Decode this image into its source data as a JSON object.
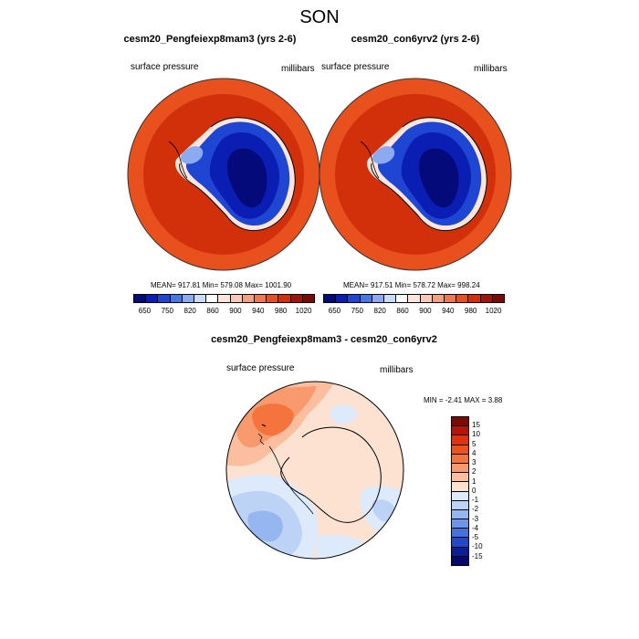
{
  "page": {
    "title": "SON"
  },
  "panels": [
    {
      "case": "cesm20_Pengfeiexp8mam3 (yrs 2-6)",
      "variable": "surface pressure",
      "units": "millibars",
      "stats": "MEAN= 917.81  Min= 579.08  Max= 1001.90"
    },
    {
      "case": "cesm20_con6yrv2 (yrs 2-6)",
      "variable": "surface pressure",
      "units": "millibars",
      "stats": "MEAN= 917.51  Min= 578.72  Max= 998.24"
    }
  ],
  "top_colorbar": {
    "labels": [
      "650",
      "750",
      "820",
      "860",
      "900",
      "940",
      "980",
      "1020"
    ],
    "colors": [
      "#050a7a",
      "#0a1eb4",
      "#1e46d2",
      "#4678e6",
      "#8caaf0",
      "#c8dcf8",
      "#ffffff",
      "#fce6dc",
      "#fac8b4",
      "#f5a082",
      "#f07850",
      "#e8501e",
      "#d2300a",
      "#a0140a",
      "#7a0a05"
    ]
  },
  "diff_panel": {
    "title": "cesm20_Pengfeiexp8mam3 - cesm20_con6yrv2",
    "variable": "surface pressure",
    "units": "millibars",
    "stats": "MIN =  -2.41 MAX =   3.88"
  },
  "diff_colorbar": {
    "labels": [
      "15",
      "10",
      "5",
      "4",
      "3",
      "2",
      "1",
      "0",
      "-1",
      "-2",
      "-3",
      "-4",
      "-5",
      "-10",
      "-15"
    ],
    "colors": [
      "#7a0a05",
      "#b4140a",
      "#e0320f",
      "#f0501e",
      "#f5733c",
      "#f89a6e",
      "#fbbfa0",
      "#fde2d2",
      "#ddeafb",
      "#bcd3f6",
      "#96b6ef",
      "#6e94e6",
      "#4670dc",
      "#2446c8",
      "#0c1e96",
      "#050a6a"
    ]
  }
}
